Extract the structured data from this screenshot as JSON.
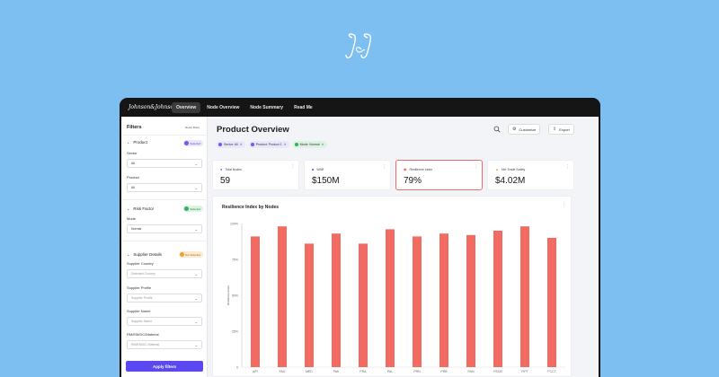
{
  "logo": {
    "text": "J&J"
  },
  "topbar": {
    "brand": "Johnson&Johnson",
    "tabs": [
      "Overview",
      "Node Overview",
      "Node Summary",
      "Read Me"
    ],
    "active_tab": "Overview"
  },
  "sidebar": {
    "title": "Filters",
    "reset": "Reset filters",
    "product": {
      "label": "Product",
      "badge": "Selected",
      "sector_label": "Sector",
      "sector_value": "All",
      "product_label": "Product",
      "product_value": "All"
    },
    "risk": {
      "label": "Risk Factor",
      "badge": "Selected",
      "mode_label": "Mode",
      "mode_value": "Normal"
    },
    "supplier": {
      "label": "Supplier Details",
      "badge": "Not Selected",
      "country_label": "Supplier Country",
      "country_placeholder": "Selected Country",
      "profile_label": "Supplier Profile",
      "profile_placeholder": "Supplier Profile",
      "name_label": "Supplier Name",
      "name_placeholder": "Supplier Name",
      "material_label": "RM/EM/DC/Material",
      "material_placeholder": "RM/EM/DC Material"
    },
    "apply": "Apply filters"
  },
  "main": {
    "title": "Product Overview",
    "customize": "Customize",
    "export": "Export",
    "chips": [
      {
        "label": "Sector: All",
        "color": "#6b5cf6",
        "bg": "#e9e6fd"
      },
      {
        "label": "Product: Product 1",
        "color": "#6b5cf6",
        "bg": "#e9e6fd"
      },
      {
        "label": "Mode: Normal",
        "color": "#2fb35a",
        "bg": "#dcf3e3"
      }
    ],
    "kpis": [
      {
        "label": "Total Nodes",
        "value": "59",
        "icon": "pin-icon"
      },
      {
        "label": "WAR",
        "value": "$150M",
        "icon": "chart-icon"
      },
      {
        "label": "Resilience Index",
        "value": "79%",
        "icon": "alert-icon"
      },
      {
        "label": "Net Trade Safety",
        "value": "$4.02M",
        "icon": "warning-icon"
      }
    ]
  },
  "chart_data": {
    "type": "bar",
    "title": "Resilience Index by Nodes",
    "ylabel": "Resilience Index",
    "xlabel": "",
    "ylim": [
      0,
      100
    ],
    "yticks": [
      "0",
      "25%",
      "50%",
      "75%",
      "100%"
    ],
    "categories": [
      "API",
      "FAU",
      "MED",
      "PAK",
      "PRA",
      "PAL",
      "PRN",
      "PRB",
      "PAN",
      "FECB",
      "FIPT",
      "FCCT"
    ],
    "values": [
      91,
      98,
      86,
      93,
      86,
      96,
      91,
      93,
      92,
      95,
      98,
      90
    ],
    "color": "#f26b62"
  }
}
